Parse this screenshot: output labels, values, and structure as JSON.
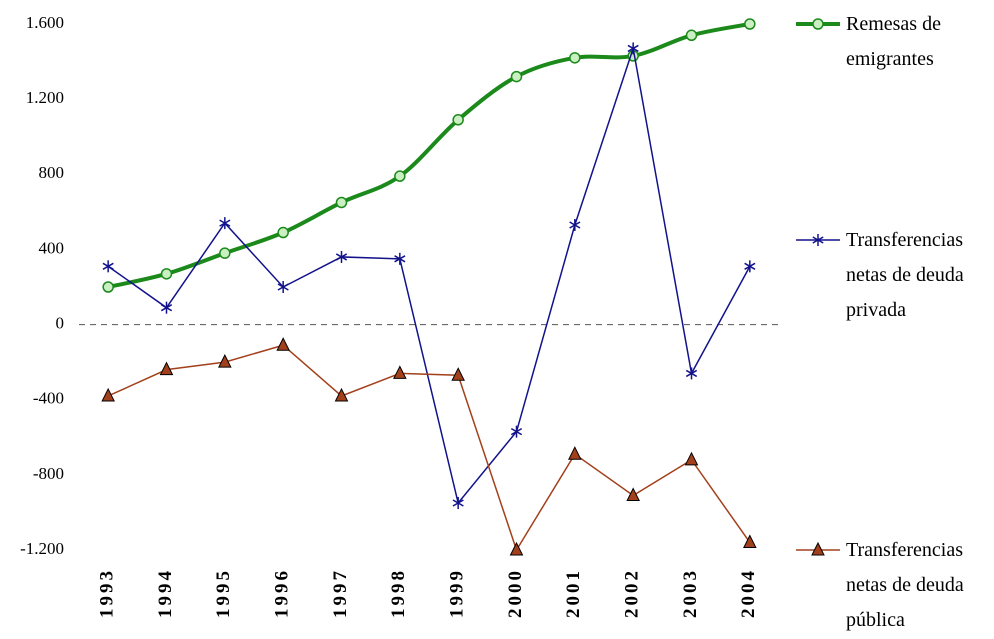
{
  "chart_data": {
    "type": "line",
    "categories": [
      "1993",
      "1994",
      "1995",
      "1996",
      "1997",
      "1998",
      "1999",
      "2000",
      "2001",
      "2002",
      "2003",
      "2004"
    ],
    "series": [
      {
        "name": "Remesas de emigrantes",
        "color": "#1b8a1b",
        "marker": "circle",
        "marker_fill": "#c9efc2",
        "line_width": 4,
        "smooth": true,
        "values": [
          200,
          270,
          380,
          490,
          650,
          790,
          1090,
          1320,
          1420,
          1430,
          1540,
          1600
        ]
      },
      {
        "name": "Transferencias netas de deuda privada",
        "color": "#12128c",
        "marker": "star",
        "marker_fill": "#12128c",
        "line_width": 1.5,
        "smooth": false,
        "values": [
          310,
          90,
          540,
          200,
          360,
          350,
          -950,
          -570,
          530,
          1470,
          -260,
          310
        ]
      },
      {
        "name": "Transferencias netas de deuda pública",
        "color": "#a3401c",
        "marker": "triangle",
        "marker_fill": "#a3401c",
        "line_width": 1.5,
        "smooth": false,
        "values": [
          -380,
          -240,
          -200,
          -110,
          -380,
          -260,
          -270,
          -1200,
          -690,
          -910,
          -720,
          -1160
        ]
      }
    ],
    "ylim": [
      -1200,
      1600
    ],
    "yticks": [
      {
        "value": 1600,
        "label": "1.600"
      },
      {
        "value": 1200,
        "label": "1.200"
      },
      800,
      400,
      0,
      -400,
      -800,
      {
        "value": -1200,
        "label": "-1.200"
      }
    ],
    "zero_line": true
  }
}
